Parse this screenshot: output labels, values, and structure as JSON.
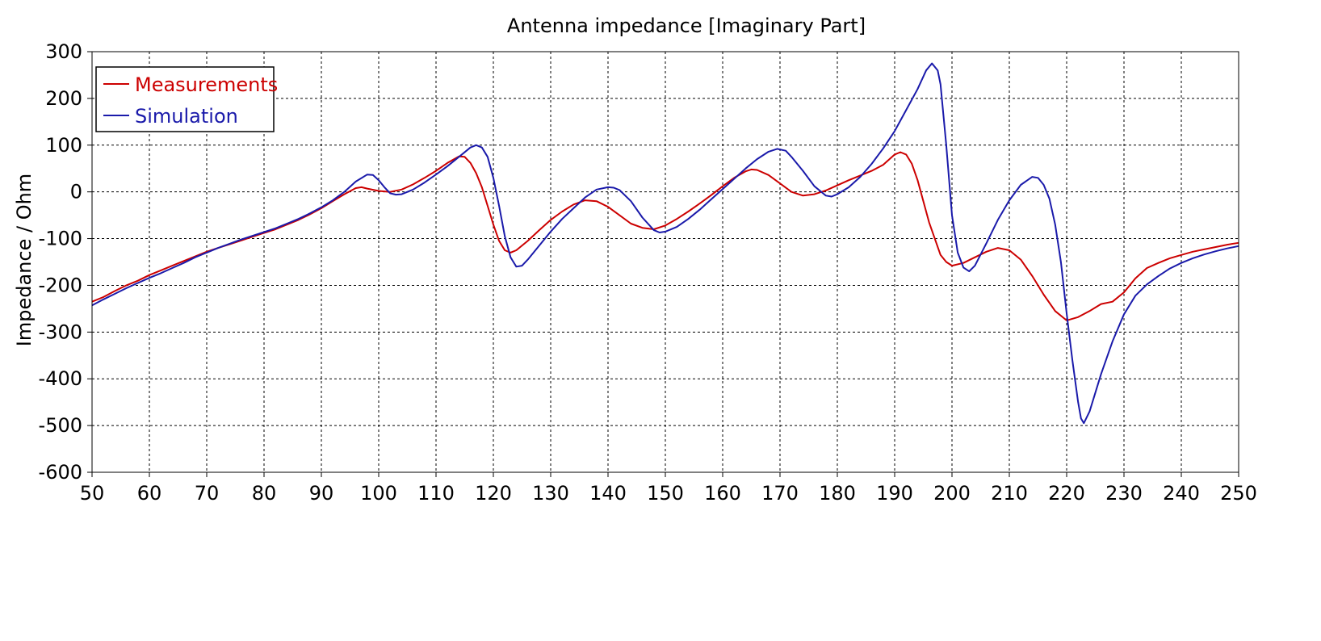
{
  "chart_data": {
    "type": "line",
    "title": "Antenna impedance [Imaginary Part]",
    "xlabel": "",
    "ylabel": "Impedance / Ohm",
    "xlim": [
      50,
      250
    ],
    "ylim": [
      -600,
      300
    ],
    "xticks": [
      50,
      60,
      70,
      80,
      90,
      100,
      110,
      120,
      130,
      140,
      150,
      160,
      170,
      180,
      190,
      200,
      210,
      220,
      230,
      240,
      250
    ],
    "yticks": [
      300,
      200,
      100,
      0,
      -100,
      -200,
      -300,
      -400,
      -500,
      -600
    ],
    "grid": true,
    "legend_position": "top-left",
    "series": [
      {
        "name": "Measurements",
        "color": "#cc0000",
        "points": [
          [
            50,
            -235
          ],
          [
            52,
            -225
          ],
          [
            54,
            -212
          ],
          [
            56,
            -200
          ],
          [
            58,
            -190
          ],
          [
            60,
            -178
          ],
          [
            62,
            -168
          ],
          [
            64,
            -158
          ],
          [
            66,
            -148
          ],
          [
            68,
            -138
          ],
          [
            70,
            -128
          ],
          [
            72,
            -120
          ],
          [
            74,
            -112
          ],
          [
            76,
            -104
          ],
          [
            78,
            -96
          ],
          [
            80,
            -88
          ],
          [
            82,
            -80
          ],
          [
            84,
            -70
          ],
          [
            86,
            -60
          ],
          [
            88,
            -48
          ],
          [
            90,
            -35
          ],
          [
            92,
            -20
          ],
          [
            94,
            -5
          ],
          [
            96,
            8
          ],
          [
            97,
            10
          ],
          [
            98,
            7
          ],
          [
            100,
            2
          ],
          [
            102,
            0
          ],
          [
            104,
            5
          ],
          [
            106,
            16
          ],
          [
            108,
            30
          ],
          [
            110,
            45
          ],
          [
            112,
            62
          ],
          [
            114,
            76
          ],
          [
            115,
            75
          ],
          [
            116,
            62
          ],
          [
            117,
            40
          ],
          [
            118,
            10
          ],
          [
            119,
            -30
          ],
          [
            120,
            -70
          ],
          [
            121,
            -105
          ],
          [
            122,
            -125
          ],
          [
            123,
            -130
          ],
          [
            124,
            -125
          ],
          [
            126,
            -105
          ],
          [
            128,
            -82
          ],
          [
            130,
            -60
          ],
          [
            132,
            -42
          ],
          [
            134,
            -27
          ],
          [
            136,
            -18
          ],
          [
            138,
            -20
          ],
          [
            140,
            -32
          ],
          [
            142,
            -50
          ],
          [
            144,
            -68
          ],
          [
            146,
            -77
          ],
          [
            148,
            -80
          ],
          [
            150,
            -72
          ],
          [
            152,
            -58
          ],
          [
            154,
            -42
          ],
          [
            156,
            -25
          ],
          [
            158,
            -7
          ],
          [
            160,
            12
          ],
          [
            162,
            30
          ],
          [
            164,
            44
          ],
          [
            165,
            48
          ],
          [
            166,
            47
          ],
          [
            168,
            36
          ],
          [
            170,
            18
          ],
          [
            172,
            0
          ],
          [
            174,
            -8
          ],
          [
            176,
            -5
          ],
          [
            178,
            3
          ],
          [
            180,
            14
          ],
          [
            182,
            25
          ],
          [
            184,
            35
          ],
          [
            186,
            45
          ],
          [
            188,
            58
          ],
          [
            190,
            80
          ],
          [
            191,
            85
          ],
          [
            192,
            80
          ],
          [
            193,
            60
          ],
          [
            194,
            25
          ],
          [
            195,
            -20
          ],
          [
            196,
            -65
          ],
          [
            197,
            -100
          ],
          [
            198,
            -135
          ],
          [
            199,
            -150
          ],
          [
            200,
            -158
          ],
          [
            202,
            -152
          ],
          [
            204,
            -140
          ],
          [
            206,
            -128
          ],
          [
            208,
            -120
          ],
          [
            210,
            -125
          ],
          [
            212,
            -145
          ],
          [
            214,
            -180
          ],
          [
            216,
            -220
          ],
          [
            218,
            -255
          ],
          [
            220,
            -275
          ],
          [
            222,
            -268
          ],
          [
            224,
            -255
          ],
          [
            226,
            -240
          ],
          [
            228,
            -235
          ],
          [
            230,
            -215
          ],
          [
            232,
            -185
          ],
          [
            234,
            -163
          ],
          [
            236,
            -152
          ],
          [
            238,
            -142
          ],
          [
            240,
            -135
          ],
          [
            242,
            -128
          ],
          [
            244,
            -123
          ],
          [
            246,
            -118
          ],
          [
            248,
            -113
          ],
          [
            250,
            -109
          ]
        ]
      },
      {
        "name": "Simulation",
        "color": "#1a1aaa",
        "points": [
          [
            50,
            -243
          ],
          [
            52,
            -230
          ],
          [
            54,
            -218
          ],
          [
            56,
            -206
          ],
          [
            58,
            -195
          ],
          [
            60,
            -184
          ],
          [
            62,
            -174
          ],
          [
            64,
            -163
          ],
          [
            66,
            -152
          ],
          [
            68,
            -140
          ],
          [
            70,
            -130
          ],
          [
            72,
            -120
          ],
          [
            74,
            -111
          ],
          [
            76,
            -102
          ],
          [
            78,
            -94
          ],
          [
            80,
            -86
          ],
          [
            82,
            -78
          ],
          [
            84,
            -68
          ],
          [
            86,
            -58
          ],
          [
            88,
            -46
          ],
          [
            90,
            -33
          ],
          [
            92,
            -18
          ],
          [
            94,
            0
          ],
          [
            96,
            22
          ],
          [
            98,
            37
          ],
          [
            99,
            36
          ],
          [
            100,
            25
          ],
          [
            101,
            10
          ],
          [
            102,
            -3
          ],
          [
            103,
            -6
          ],
          [
            104,
            -5
          ],
          [
            106,
            5
          ],
          [
            108,
            20
          ],
          [
            110,
            37
          ],
          [
            112,
            55
          ],
          [
            114,
            75
          ],
          [
            116,
            95
          ],
          [
            117,
            100
          ],
          [
            118,
            95
          ],
          [
            119,
            75
          ],
          [
            120,
            30
          ],
          [
            121,
            -30
          ],
          [
            122,
            -95
          ],
          [
            123,
            -140
          ],
          [
            124,
            -160
          ],
          [
            125,
            -158
          ],
          [
            126,
            -145
          ],
          [
            128,
            -115
          ],
          [
            130,
            -85
          ],
          [
            132,
            -58
          ],
          [
            134,
            -35
          ],
          [
            136,
            -12
          ],
          [
            138,
            5
          ],
          [
            140,
            10
          ],
          [
            141,
            9
          ],
          [
            142,
            4
          ],
          [
            144,
            -20
          ],
          [
            146,
            -55
          ],
          [
            148,
            -82
          ],
          [
            149,
            -87
          ],
          [
            150,
            -85
          ],
          [
            152,
            -75
          ],
          [
            154,
            -58
          ],
          [
            156,
            -38
          ],
          [
            158,
            -16
          ],
          [
            160,
            6
          ],
          [
            162,
            28
          ],
          [
            164,
            50
          ],
          [
            166,
            70
          ],
          [
            168,
            86
          ],
          [
            169.5,
            92
          ],
          [
            171,
            88
          ],
          [
            172,
            75
          ],
          [
            174,
            45
          ],
          [
            176,
            12
          ],
          [
            178,
            -8
          ],
          [
            179,
            -10
          ],
          [
            180,
            -5
          ],
          [
            182,
            10
          ],
          [
            184,
            32
          ],
          [
            186,
            60
          ],
          [
            188,
            93
          ],
          [
            190,
            130
          ],
          [
            192,
            175
          ],
          [
            194,
            220
          ],
          [
            195.5,
            260
          ],
          [
            196.5,
            275
          ],
          [
            197.5,
            260
          ],
          [
            198,
            230
          ],
          [
            199,
            100
          ],
          [
            200,
            -50
          ],
          [
            201,
            -130
          ],
          [
            202,
            -162
          ],
          [
            203,
            -170
          ],
          [
            204,
            -158
          ],
          [
            206,
            -110
          ],
          [
            208,
            -60
          ],
          [
            210,
            -18
          ],
          [
            212,
            15
          ],
          [
            214,
            32
          ],
          [
            215,
            30
          ],
          [
            216,
            15
          ],
          [
            217,
            -15
          ],
          [
            218,
            -70
          ],
          [
            219,
            -150
          ],
          [
            220,
            -260
          ],
          [
            221,
            -360
          ],
          [
            222,
            -450
          ],
          [
            222.5,
            -485
          ],
          [
            223,
            -495
          ],
          [
            224,
            -470
          ],
          [
            225,
            -430
          ],
          [
            226,
            -390
          ],
          [
            228,
            -320
          ],
          [
            230,
            -262
          ],
          [
            232,
            -222
          ],
          [
            234,
            -198
          ],
          [
            236,
            -180
          ],
          [
            238,
            -164
          ],
          [
            240,
            -152
          ],
          [
            242,
            -142
          ],
          [
            244,
            -134
          ],
          [
            246,
            -127
          ],
          [
            248,
            -121
          ],
          [
            250,
            -116
          ]
        ]
      }
    ]
  }
}
